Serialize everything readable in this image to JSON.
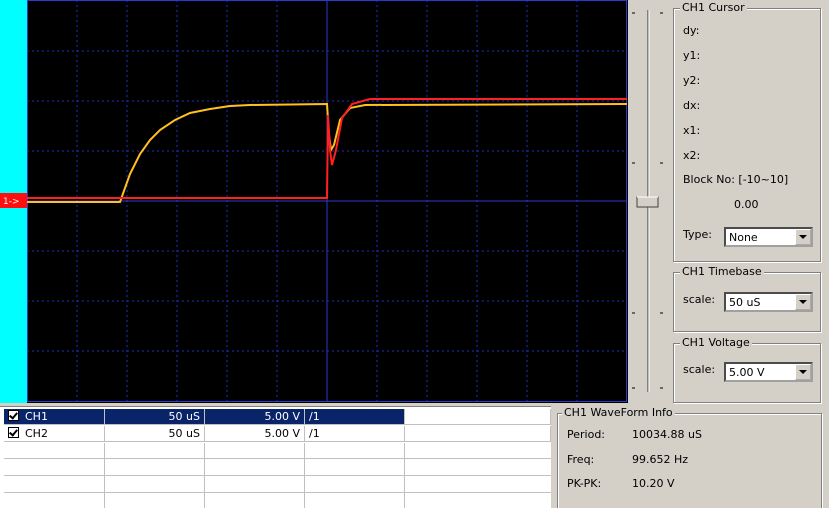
{
  "marker": "1->",
  "cursor": {
    "title": "CH1 Cursor",
    "labels": [
      "dy:",
      "y1:",
      "y2:",
      "dx:",
      "x1:",
      "x2:"
    ],
    "block_label": "Block No:  [-10~10]",
    "block_value": "0.00",
    "type_label": "Type:",
    "type_value": "None"
  },
  "timebase": {
    "title": "CH1 Timebase",
    "scale_label": "scale:",
    "scale_value": "50 uS"
  },
  "voltage": {
    "title": "CH1 Voltage",
    "scale_label": "scale:",
    "scale_value": "5.00 V"
  },
  "channels": [
    [
      "CH1",
      "50 uS",
      "5.00 V",
      "/1"
    ],
    [
      "CH2",
      "50 uS",
      "5.00 V",
      "/1"
    ]
  ],
  "info": {
    "title": "CH1 WaveForm Info",
    "rows": [
      [
        "Period:",
        "10034.88 uS"
      ],
      [
        "Freq:",
        "99.652 Hz"
      ],
      [
        "PK-PK:",
        "10.20 V"
      ]
    ]
  }
}
